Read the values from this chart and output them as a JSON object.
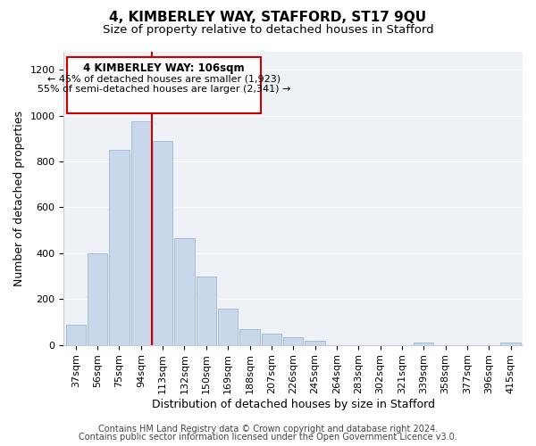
{
  "title": "4, KIMBERLEY WAY, STAFFORD, ST17 9QU",
  "subtitle": "Size of property relative to detached houses in Stafford",
  "xlabel": "Distribution of detached houses by size in Stafford",
  "ylabel": "Number of detached properties",
  "bar_labels": [
    "37sqm",
    "56sqm",
    "75sqm",
    "94sqm",
    "113sqm",
    "132sqm",
    "150sqm",
    "169sqm",
    "188sqm",
    "207sqm",
    "226sqm",
    "245sqm",
    "264sqm",
    "283sqm",
    "302sqm",
    "321sqm",
    "339sqm",
    "358sqm",
    "377sqm",
    "396sqm",
    "415sqm"
  ],
  "bar_values": [
    90,
    400,
    850,
    975,
    890,
    465,
    300,
    160,
    70,
    50,
    35,
    20,
    0,
    0,
    0,
    0,
    10,
    0,
    0,
    0,
    10
  ],
  "bar_color": "#c8d8ea",
  "bar_edge_color": "#9ab8d0",
  "vline_color": "#cc0000",
  "annotation_box_edge": "#cc0000",
  "annotation_title": "4 KIMBERLEY WAY: 106sqm",
  "annotation_line1": "← 45% of detached houses are smaller (1,923)",
  "annotation_line2": "55% of semi-detached houses are larger (2,341) →",
  "footer_line1": "Contains HM Land Registry data © Crown copyright and database right 2024.",
  "footer_line2": "Contains public sector information licensed under the Open Government Licence v3.0.",
  "ylim": [
    0,
    1280
  ],
  "yticks": [
    0,
    200,
    400,
    600,
    800,
    1000,
    1200
  ],
  "bg_color": "#eef2f7",
  "grid_color": "#ffffff",
  "title_fontsize": 11,
  "subtitle_fontsize": 9.5,
  "axis_label_fontsize": 9,
  "tick_fontsize": 8,
  "footer_fontsize": 7,
  "ann_title_fontsize": 8.5,
  "ann_text_fontsize": 8
}
